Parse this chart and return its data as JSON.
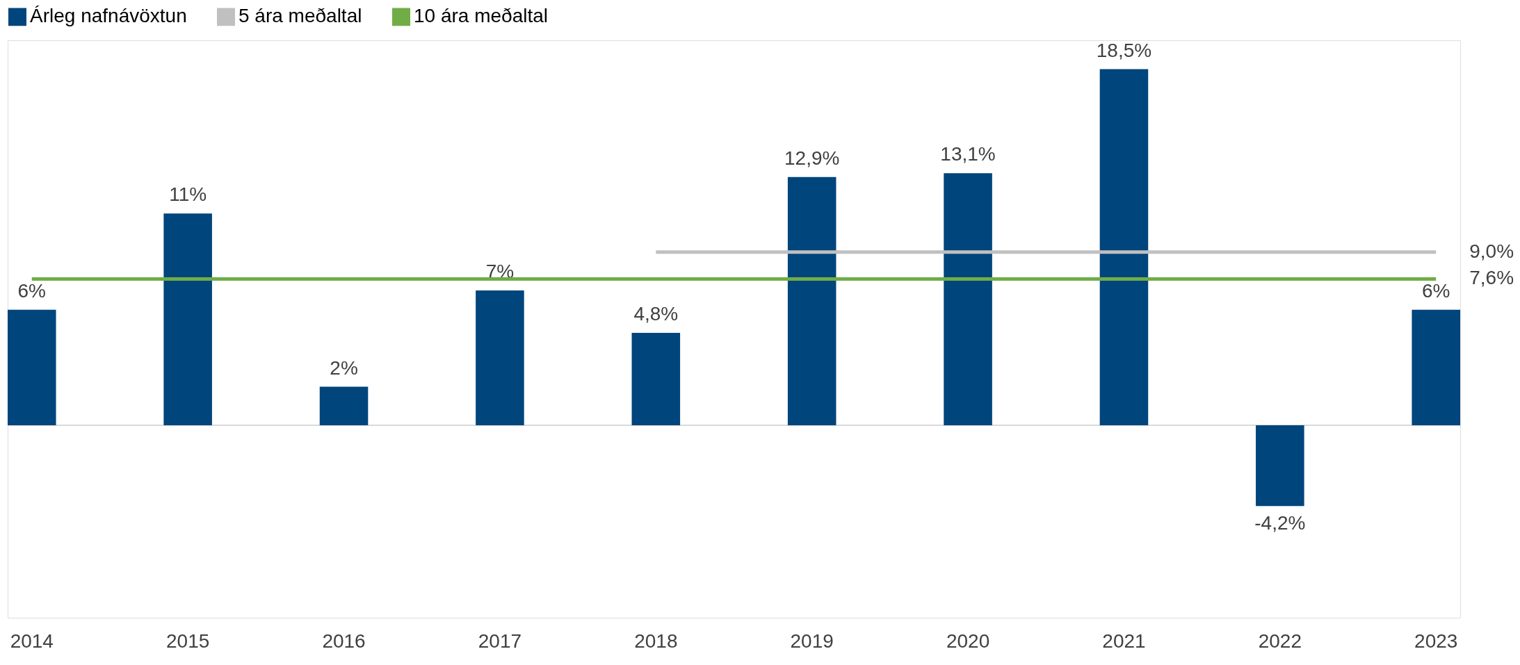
{
  "chart_data": {
    "type": "bar",
    "categories": [
      "2014",
      "2015",
      "2016",
      "2017",
      "2018",
      "2019",
      "2020",
      "2021",
      "2022",
      "2023"
    ],
    "legend": "top",
    "tick_labels": "x",
    "grid": false,
    "ylim": [
      -10,
      20
    ],
    "series": [
      {
        "name": "Árleg nafnávöxtun",
        "color": "#00457c",
        "values": [
          6,
          11,
          2,
          7,
          4.8,
          12.9,
          13.1,
          18.5,
          -4.2,
          6
        ],
        "value_labels": [
          "6%",
          "11%",
          "2%",
          "7%",
          "4,8%",
          "12,9%",
          "13,1%",
          "18,5%",
          "-4,2%",
          "6%"
        ]
      },
      {
        "name": "5 ára meðaltal",
        "type": "line",
        "color": "#c0c0c0",
        "values": [
          null,
          null,
          null,
          null,
          9.0,
          9.0,
          9.0,
          9.0,
          9.0,
          9.0
        ],
        "value_labels": [
          null,
          null,
          null,
          null,
          null,
          null,
          null,
          null,
          null,
          "9,0%"
        ]
      },
      {
        "name": "10 ára meðaltal",
        "type": "line",
        "color": "#70ad47",
        "values": [
          7.6,
          7.6,
          7.6,
          7.6,
          7.6,
          7.6,
          7.6,
          7.6,
          7.6,
          7.6
        ],
        "value_labels": [
          null,
          null,
          null,
          null,
          null,
          null,
          null,
          null,
          null,
          "7,6%"
        ]
      }
    ]
  }
}
